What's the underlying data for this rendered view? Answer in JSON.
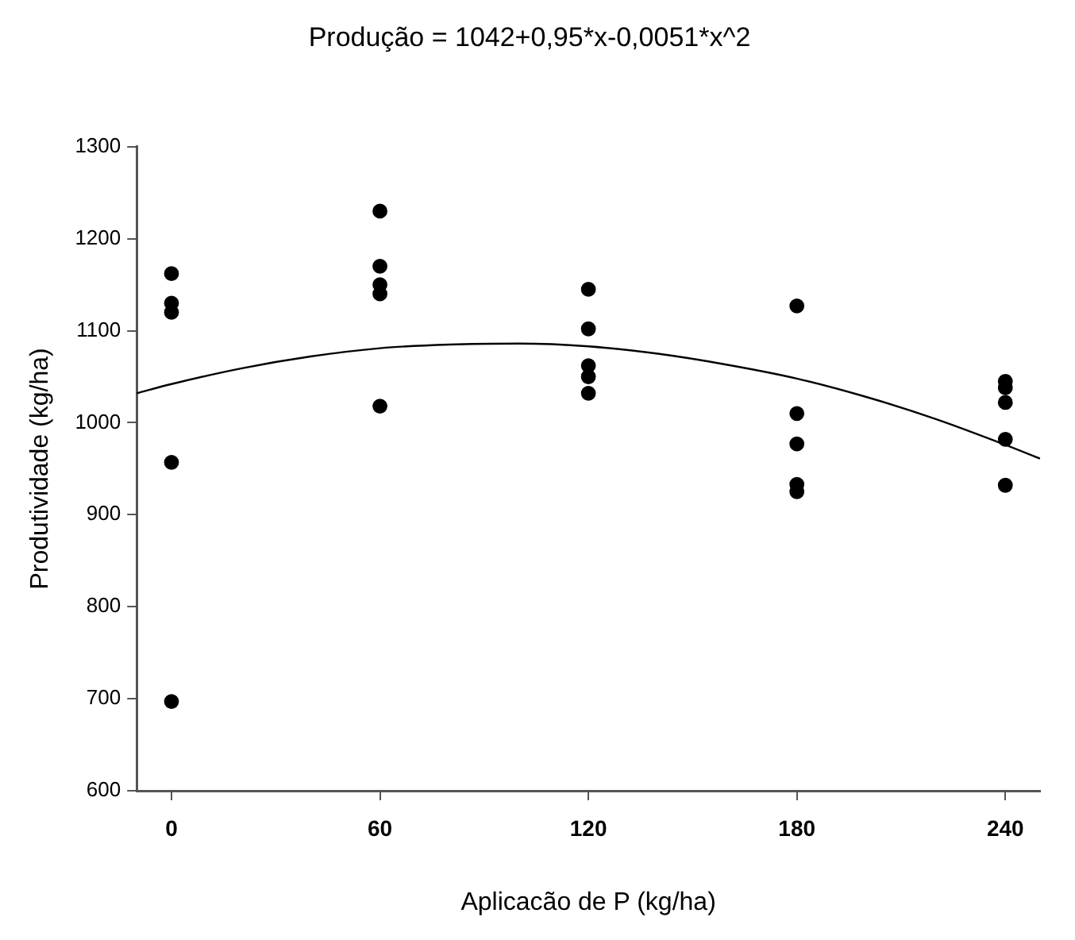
{
  "chart_data": {
    "type": "scatter",
    "title": "Produção = 1042+0,95*x-0,0051*x^2",
    "xlabel": "Aplicacão de P (kg/ha)",
    "ylabel": "Produtividade (kg/ha)",
    "xlim": [
      -10,
      250
    ],
    "xticks": [
      0,
      60,
      120,
      180,
      240
    ],
    "ylim": [
      600,
      1300
    ],
    "yticks": [
      600,
      700,
      800,
      900,
      1000,
      1100,
      1200,
      1300
    ],
    "grid": false,
    "legend": false,
    "marker": "circle",
    "series": [
      {
        "type": "scatter",
        "color": "#000000",
        "x": [
          0,
          0,
          0,
          0,
          0,
          60,
          60,
          60,
          60,
          60,
          120,
          120,
          120,
          120,
          120,
          180,
          180,
          180,
          180,
          180,
          240,
          240,
          240,
          240,
          240
        ],
        "values": [
          1162,
          1130,
          1120,
          957,
          697,
          1230,
          1170,
          1150,
          1140,
          1018,
          1145,
          1102,
          1062,
          1050,
          1032,
          1127,
          1010,
          977,
          933,
          925,
          1045,
          1038,
          1022,
          982,
          932
        ]
      },
      {
        "type": "line",
        "color": "#000000",
        "marker": "none",
        "x": [
          -10,
          0,
          20,
          40,
          60,
          80,
          100,
          120,
          140,
          160,
          180,
          200,
          220,
          240,
          250
        ],
        "values": [
          1032,
          1042,
          1059,
          1072,
          1081,
          1085,
          1086,
          1083,
          1075,
          1063,
          1048,
          1028,
          1004,
          976,
          961
        ]
      }
    ]
  }
}
